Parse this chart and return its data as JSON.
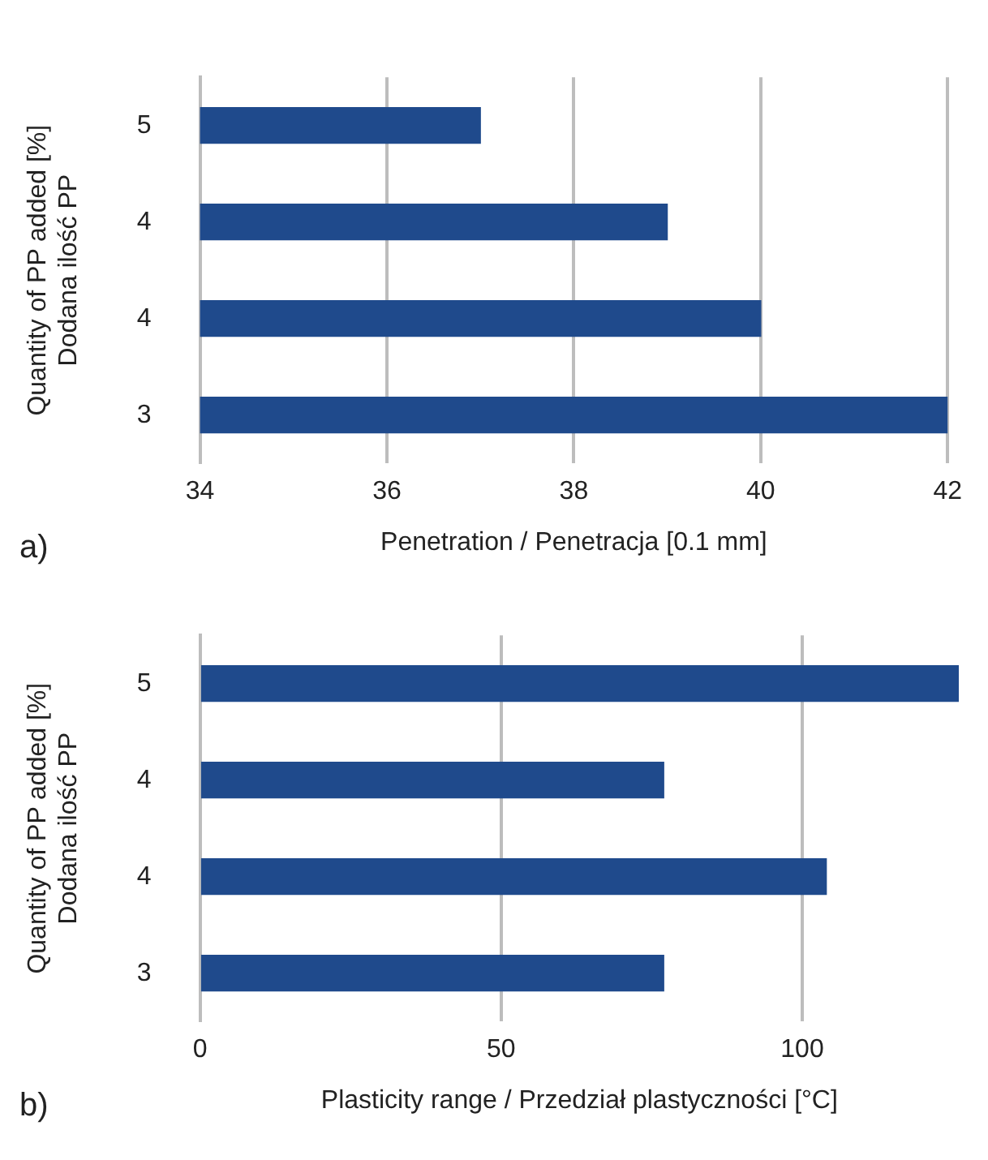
{
  "chart_data": [
    {
      "type": "bar",
      "orientation": "horizontal",
      "categories": [
        "5",
        "4",
        "4",
        "3"
      ],
      "values": [
        37,
        39,
        40,
        42
      ],
      "color": "#1f4a8c",
      "xlim": [
        34,
        42
      ],
      "xticks": [
        34,
        36,
        38,
        40,
        42
      ],
      "grid": "x",
      "xlabel": "Penetration / Penetracja [0.1 mm]",
      "ylabel": "Quantity of PP added [%]\nDodana ilość PP",
      "annotations": [
        "a)"
      ]
    },
    {
      "type": "bar",
      "orientation": "horizontal",
      "categories": [
        "5",
        "4",
        "4",
        "3"
      ],
      "values": [
        126,
        77,
        104,
        77
      ],
      "color": "#1f4a8c",
      "xlim": [
        0,
        126
      ],
      "xticks": [
        0,
        50,
        100
      ],
      "grid": "x",
      "xlabel": "Plasticity range / Przedział plastyczności [°C]",
      "ylabel": "Quantity of PP added [%]\nDodana ilość PP",
      "annotations": [
        "b)"
      ]
    }
  ]
}
